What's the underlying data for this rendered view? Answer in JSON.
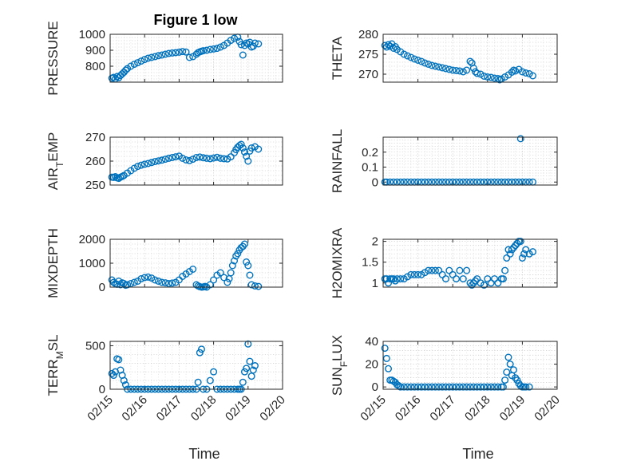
{
  "figure_title": "Figure 1 low",
  "chart_data": [
    {
      "type": "scatter",
      "ylabel": "PRESSURE",
      "title": "Figure 1 low",
      "xlim": [
        0,
        5
      ],
      "ylim": [
        700,
        1000
      ],
      "yticks": [
        800,
        900,
        1000
      ],
      "ytick_labels": [
        "800",
        "900",
        "1000"
      ],
      "xticks": [
        0,
        1,
        2,
        3,
        4,
        5
      ],
      "xtick_labels": [],
      "color": "#0072BD",
      "x": [
        0.05,
        0.1,
        0.15,
        0.2,
        0.25,
        0.3,
        0.35,
        0.4,
        0.45,
        0.5,
        0.6,
        0.7,
        0.8,
        0.9,
        1.0,
        1.1,
        1.2,
        1.3,
        1.4,
        1.5,
        1.6,
        1.7,
        1.8,
        1.9,
        2.0,
        2.1,
        2.2,
        2.3,
        2.4,
        2.5,
        2.55,
        2.6,
        2.65,
        2.7,
        2.8,
        2.9,
        3.0,
        3.1,
        3.2,
        3.3,
        3.4,
        3.5,
        3.6,
        3.7,
        3.75,
        3.8,
        3.85,
        3.9,
        3.95,
        4.0,
        4.05,
        4.1,
        4.15,
        4.2,
        4.3
      ],
      "y": [
        725,
        730,
        720,
        735,
        728,
        742,
        752,
        762,
        775,
        785,
        800,
        812,
        822,
        832,
        842,
        850,
        855,
        860,
        866,
        870,
        875,
        880,
        883,
        885,
        888,
        892,
        889,
        855,
        860,
        875,
        885,
        890,
        894,
        897,
        900,
        905,
        908,
        912,
        920,
        930,
        945,
        962,
        975,
        982,
        955,
        935,
        870,
        930,
        945,
        940,
        950,
        920,
        925,
        945,
        940
      ]
    },
    {
      "type": "scatter",
      "ylabel": "THETA",
      "xlim": [
        0,
        5
      ],
      "ylim": [
        268,
        280
      ],
      "yticks": [
        270,
        275,
        280
      ],
      "ytick_labels": [
        "270",
        "275",
        "280"
      ],
      "xticks": [
        0,
        1,
        2,
        3,
        4,
        5
      ],
      "xtick_labels": [],
      "color": "#0072BD",
      "x": [
        0.05,
        0.1,
        0.15,
        0.2,
        0.25,
        0.3,
        0.35,
        0.4,
        0.5,
        0.6,
        0.7,
        0.8,
        0.9,
        1.0,
        1.1,
        1.2,
        1.3,
        1.4,
        1.5,
        1.6,
        1.7,
        1.8,
        1.9,
        2.0,
        2.1,
        2.2,
        2.3,
        2.4,
        2.5,
        2.55,
        2.6,
        2.65,
        2.7,
        2.8,
        2.9,
        3.0,
        3.1,
        3.2,
        3.3,
        3.35,
        3.4,
        3.5,
        3.6,
        3.7,
        3.75,
        3.8,
        3.9,
        4.0,
        4.1,
        4.2,
        4.3
      ],
      "y": [
        277.2,
        276.8,
        277.4,
        277.0,
        277.6,
        276.5,
        276.9,
        276.2,
        275.6,
        275.0,
        274.6,
        274.2,
        273.8,
        273.5,
        273.2,
        272.8,
        272.5,
        272.2,
        272.0,
        271.8,
        271.6,
        271.4,
        271.2,
        271.0,
        270.9,
        270.8,
        270.6,
        271.0,
        273.2,
        272.8,
        271.5,
        270.6,
        270.2,
        270.0,
        269.5,
        269.3,
        269.2,
        269.0,
        268.9,
        268.6,
        268.8,
        269.3,
        269.8,
        270.5,
        271.0,
        270.8,
        271.2,
        270.6,
        270.3,
        270.1,
        269.6
      ]
    },
    {
      "type": "scatter",
      "ylabel": "AIR_TEMP",
      "xlim": [
        0,
        5
      ],
      "ylim": [
        250,
        270
      ],
      "yticks": [
        250,
        260,
        270
      ],
      "ytick_labels": [
        "250",
        "260",
        "270"
      ],
      "xticks": [
        0,
        1,
        2,
        3,
        4,
        5
      ],
      "xtick_labels": [],
      "color": "#0072BD",
      "x": [
        0.05,
        0.1,
        0.15,
        0.2,
        0.25,
        0.3,
        0.35,
        0.4,
        0.5,
        0.6,
        0.7,
        0.8,
        0.9,
        1.0,
        1.1,
        1.2,
        1.3,
        1.4,
        1.5,
        1.6,
        1.7,
        1.8,
        1.9,
        2.0,
        2.1,
        2.2,
        2.3,
        2.4,
        2.5,
        2.6,
        2.7,
        2.8,
        2.9,
        3.0,
        3.1,
        3.2,
        3.3,
        3.4,
        3.5,
        3.6,
        3.65,
        3.7,
        3.75,
        3.8,
        3.85,
        3.9,
        3.95,
        4.0,
        4.05,
        4.1,
        4.2,
        4.3
      ],
      "y": [
        253.3,
        253.2,
        253.5,
        253.0,
        252.8,
        253.3,
        253.6,
        254.0,
        255.0,
        256.0,
        257.0,
        257.8,
        258.3,
        258.7,
        259.0,
        259.4,
        259.8,
        260.1,
        260.4,
        260.8,
        261.2,
        261.5,
        261.8,
        262.1,
        261.2,
        260.5,
        260.2,
        260.8,
        261.5,
        261.7,
        261.4,
        261.2,
        261.0,
        261.3,
        261.6,
        261.2,
        261.0,
        260.9,
        261.8,
        263.5,
        264.8,
        265.8,
        266.5,
        267.0,
        265.5,
        263.8,
        262.0,
        260.0,
        264.2,
        265.5,
        266.0,
        265.0
      ]
    },
    {
      "type": "scatter",
      "ylabel": "RAINFALL",
      "xlim": [
        0,
        5
      ],
      "ylim": [
        -0.02,
        0.3
      ],
      "yticks": [
        0,
        0.1,
        0.2
      ],
      "ytick_labels": [
        "0",
        "0.1",
        "0.2"
      ],
      "xticks": [
        0,
        1,
        2,
        3,
        4,
        5
      ],
      "xtick_labels": [],
      "color": "#0072BD",
      "x": [
        0.05,
        0.1,
        0.2,
        0.3,
        0.4,
        0.5,
        0.6,
        0.7,
        0.8,
        0.9,
        1.0,
        1.1,
        1.2,
        1.3,
        1.4,
        1.5,
        1.6,
        1.7,
        1.8,
        1.9,
        2.0,
        2.1,
        2.2,
        2.3,
        2.4,
        2.5,
        2.6,
        2.7,
        2.8,
        2.9,
        3.0,
        3.1,
        3.2,
        3.3,
        3.4,
        3.5,
        3.6,
        3.7,
        3.8,
        3.9,
        3.95,
        4.0,
        4.1,
        4.2,
        4.3
      ],
      "y": [
        0,
        0,
        0,
        0,
        0,
        0,
        0,
        0,
        0,
        0,
        0,
        0,
        0,
        0,
        0,
        0,
        0,
        0,
        0,
        0,
        0,
        0,
        0,
        0,
        0,
        0,
        0,
        0,
        0,
        0,
        0,
        0,
        0,
        0,
        0,
        0,
        0,
        0,
        0,
        0,
        0.29,
        0,
        0,
        0,
        0
      ]
    },
    {
      "type": "scatter",
      "ylabel": "MIXDEPTH",
      "xlim": [
        0,
        5
      ],
      "ylim": [
        0,
        2000
      ],
      "yticks": [
        0,
        1000,
        2000
      ],
      "ytick_labels": [
        "0",
        "1000",
        "2000"
      ],
      "xticks": [
        0,
        1,
        2,
        3,
        4,
        5
      ],
      "xtick_labels": [],
      "color": "#0072BD",
      "x": [
        0.05,
        0.1,
        0.15,
        0.2,
        0.25,
        0.3,
        0.35,
        0.4,
        0.45,
        0.5,
        0.6,
        0.7,
        0.8,
        0.9,
        1.0,
        1.1,
        1.2,
        1.3,
        1.4,
        1.5,
        1.6,
        1.7,
        1.8,
        1.9,
        2.0,
        2.1,
        2.2,
        2.3,
        2.4,
        2.5,
        2.55,
        2.6,
        2.65,
        2.7,
        2.75,
        2.8,
        2.9,
        3.0,
        3.1,
        3.2,
        3.3,
        3.4,
        3.45,
        3.5,
        3.55,
        3.6,
        3.65,
        3.7,
        3.75,
        3.8,
        3.85,
        3.9,
        3.95,
        4.0,
        4.05,
        4.1,
        4.2,
        4.3
      ],
      "y": [
        300,
        200,
        150,
        120,
        250,
        100,
        180,
        150,
        80,
        100,
        150,
        200,
        250,
        350,
        400,
        420,
        380,
        300,
        250,
        200,
        180,
        150,
        170,
        200,
        300,
        450,
        550,
        650,
        750,
        100,
        50,
        20,
        0,
        10,
        30,
        0,
        100,
        300,
        500,
        600,
        400,
        200,
        350,
        600,
        900,
        1100,
        1300,
        1400,
        1550,
        1650,
        1700,
        1800,
        1050,
        900,
        500,
        100,
        50,
        30
      ]
    },
    {
      "type": "scatter",
      "ylabel": "H2OMIXRA",
      "xlim": [
        0,
        5
      ],
      "ylim": [
        0.9,
        2.05
      ],
      "yticks": [
        1,
        1.5,
        2
      ],
      "ytick_labels": [
        "1",
        "1.5",
        "2"
      ],
      "xticks": [
        0,
        1,
        2,
        3,
        4,
        5
      ],
      "xtick_labels": [],
      "color": "#0072BD",
      "x": [
        0.05,
        0.1,
        0.15,
        0.2,
        0.25,
        0.3,
        0.35,
        0.4,
        0.5,
        0.6,
        0.7,
        0.8,
        0.9,
        1.0,
        1.1,
        1.2,
        1.3,
        1.4,
        1.5,
        1.6,
        1.7,
        1.8,
        1.9,
        2.0,
        2.1,
        2.2,
        2.3,
        2.4,
        2.5,
        2.55,
        2.6,
        2.65,
        2.7,
        2.8,
        2.9,
        3.0,
        3.1,
        3.2,
        3.3,
        3.4,
        3.45,
        3.5,
        3.55,
        3.6,
        3.65,
        3.7,
        3.75,
        3.8,
        3.85,
        3.9,
        3.95,
        4.0,
        4.05,
        4.1,
        4.2,
        4.3
      ],
      "y": [
        1.1,
        1.1,
        1.0,
        1.1,
        1.1,
        1.1,
        1.05,
        1.1,
        1.1,
        1.1,
        1.15,
        1.2,
        1.2,
        1.2,
        1.2,
        1.25,
        1.3,
        1.3,
        1.3,
        1.3,
        1.2,
        1.1,
        1.3,
        1.2,
        1.1,
        1.3,
        1.1,
        1.3,
        1.0,
        0.95,
        1.0,
        1.05,
        1.1,
        1.0,
        0.95,
        1.1,
        1.0,
        1.1,
        1.0,
        1.1,
        1.1,
        1.3,
        1.6,
        1.8,
        1.7,
        1.8,
        1.85,
        1.9,
        1.95,
        2.0,
        2.0,
        1.6,
        1.7,
        1.8,
        1.7,
        1.75
      ]
    },
    {
      "type": "scatter",
      "ylabel": "TERR_MSL",
      "xlim": [
        0,
        5
      ],
      "ylim": [
        0,
        550
      ],
      "yticks": [
        0,
        500
      ],
      "ytick_labels": [
        "0",
        "500"
      ],
      "xticks": [
        0,
        1,
        2,
        3,
        4,
        5
      ],
      "xtick_labels": [
        "02/15",
        "02/16",
        "02/17",
        "02/18",
        "02/19",
        "02/20"
      ],
      "xlabel": "Time",
      "color": "#0072BD",
      "x": [
        0.05,
        0.1,
        0.15,
        0.2,
        0.25,
        0.3,
        0.35,
        0.4,
        0.45,
        0.5,
        0.6,
        0.7,
        0.8,
        0.9,
        1.0,
        1.1,
        1.2,
        1.3,
        1.4,
        1.5,
        1.6,
        1.7,
        1.8,
        1.9,
        2.0,
        2.1,
        2.2,
        2.3,
        2.4,
        2.5,
        2.55,
        2.6,
        2.65,
        2.7,
        2.8,
        2.9,
        3.0,
        3.1,
        3.2,
        3.3,
        3.4,
        3.5,
        3.6,
        3.7,
        3.75,
        3.8,
        3.85,
        3.9,
        3.95,
        4.0,
        4.05,
        4.1,
        4.15,
        4.2
      ],
      "y": [
        180,
        160,
        200,
        350,
        340,
        220,
        160,
        100,
        50,
        0,
        0,
        0,
        0,
        0,
        0,
        0,
        0,
        0,
        0,
        0,
        0,
        0,
        0,
        0,
        0,
        0,
        0,
        0,
        0,
        0,
        80,
        420,
        460,
        0,
        0,
        100,
        200,
        0,
        0,
        0,
        0,
        0,
        0,
        0,
        0,
        0,
        80,
        200,
        240,
        520,
        320,
        150,
        220,
        270
      ]
    },
    {
      "type": "scatter",
      "ylabel": "SUN_FLUX",
      "xlim": [
        0,
        5
      ],
      "ylim": [
        -2,
        40
      ],
      "yticks": [
        0,
        20,
        40
      ],
      "ytick_labels": [
        "0",
        "20",
        "40"
      ],
      "xticks": [
        0,
        1,
        2,
        3,
        4,
        5
      ],
      "xtick_labels": [
        "02/15",
        "02/16",
        "02/17",
        "02/18",
        "02/19",
        "02/20"
      ],
      "xlabel": "Time",
      "color": "#0072BD",
      "x": [
        0.05,
        0.1,
        0.15,
        0.2,
        0.25,
        0.3,
        0.35,
        0.4,
        0.45,
        0.5,
        0.6,
        0.7,
        0.8,
        0.9,
        1.0,
        1.1,
        1.2,
        1.3,
        1.4,
        1.5,
        1.6,
        1.7,
        1.8,
        1.9,
        2.0,
        2.1,
        2.2,
        2.3,
        2.4,
        2.5,
        2.6,
        2.7,
        2.8,
        2.9,
        3.0,
        3.1,
        3.2,
        3.3,
        3.4,
        3.45,
        3.5,
        3.55,
        3.6,
        3.65,
        3.7,
        3.75,
        3.8,
        3.85,
        3.9,
        3.95,
        4.0,
        4.05,
        4.1,
        4.2
      ],
      "y": [
        34,
        25,
        16,
        6,
        6,
        5,
        4,
        2,
        1,
        0,
        0,
        0,
        0,
        0,
        0,
        0,
        0,
        0,
        0,
        0,
        0,
        0,
        0,
        0,
        0,
        0,
        0,
        0,
        0,
        0,
        0,
        0,
        0,
        0,
        0,
        0,
        0,
        0,
        0,
        0,
        6,
        13,
        26,
        20,
        10,
        15,
        8,
        6,
        3,
        1,
        0,
        0,
        0,
        0
      ]
    }
  ]
}
